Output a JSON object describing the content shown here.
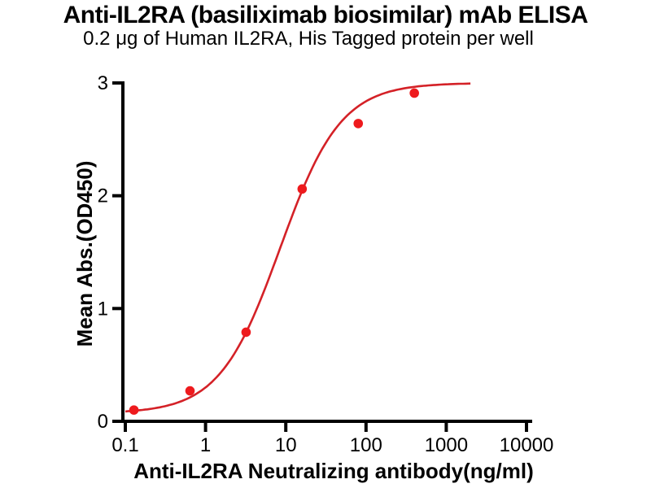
{
  "chart_data": {
    "type": "scatter",
    "title": "Anti-IL2RA (basiliximab biosimilar) mAb ELISA",
    "subtitle": "0.2 μg of Human IL2RA, His Tagged protein per well",
    "xlabel": "Anti-IL2RA Neutralizing antibody(ng/ml)",
    "ylabel": "Mean Abs.(OD450)",
    "x_scale": "log10",
    "xlim": [
      0.1,
      10000
    ],
    "ylim": [
      0,
      3
    ],
    "x_ticks": [
      0.1,
      1,
      10,
      100,
      1000,
      10000
    ],
    "x_tick_labels": [
      "0.1",
      "1",
      "10",
      "100",
      "1000",
      "10000"
    ],
    "y_ticks": [
      0,
      1,
      2,
      3
    ],
    "y_tick_labels": [
      "0",
      "1",
      "2",
      "3"
    ],
    "grid": false,
    "legend": "none",
    "axis_color": "#000000",
    "series": [
      {
        "x": [
          0.128,
          0.64,
          3.2,
          16,
          80,
          400
        ],
        "y": [
          0.1,
          0.27,
          0.79,
          2.06,
          2.64,
          2.91
        ],
        "marker": "circle",
        "marker_color": "#ee1a1d",
        "line_color": "#d42127",
        "fit": {
          "model": "4PL",
          "bottom": 0.07,
          "top": 3.0,
          "ec50": 8.5,
          "hill": 1.15,
          "x_range": [
            0.1,
            2000
          ]
        }
      }
    ]
  }
}
